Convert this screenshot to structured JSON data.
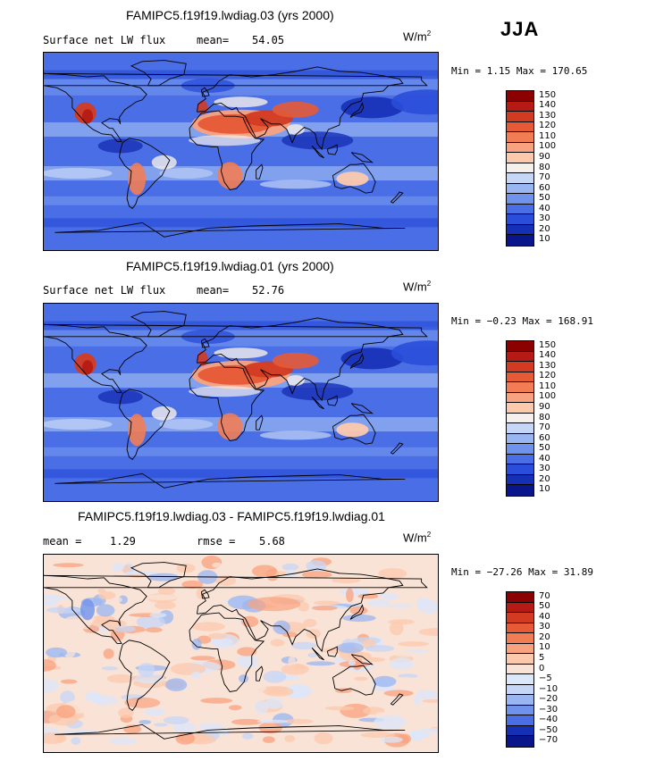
{
  "season": "JJA",
  "panels": [
    {
      "title": "FAMIPC5.f19f19.lwdiag.03 (yrs 2000)",
      "left_label": "Surface net LW flux",
      "stat_label": "mean=",
      "stat_value": "54.05",
      "units": "W/m",
      "units_sup": "2",
      "minmax_label": "Min =",
      "min": "1.15",
      "max_label": "Max =",
      "max": "170.65",
      "levels": [
        "150",
        "140",
        "130",
        "120",
        "110",
        "100",
        "90",
        "80",
        "70",
        "60",
        "50",
        "40",
        "30",
        "20",
        "10"
      ]
    },
    {
      "title": "FAMIPC5.f19f19.lwdiag.01 (yrs 2000)",
      "left_label": "Surface net LW flux",
      "stat_label": "mean=",
      "stat_value": "52.76",
      "units": "W/m",
      "units_sup": "2",
      "minmax_label": "Min =",
      "min": "−0.23",
      "max_label": "Max =",
      "max": "168.91",
      "levels": [
        "150",
        "140",
        "130",
        "120",
        "110",
        "100",
        "90",
        "80",
        "70",
        "60",
        "50",
        "40",
        "30",
        "20",
        "10"
      ]
    },
    {
      "title": "FAMIPC5.f19f19.lwdiag.03 - FAMIPC5.f19f19.lwdiag.01",
      "left_label": "mean =",
      "left_value": "1.29",
      "stat_label": "rmse =",
      "stat_value": "5.68",
      "units": "W/m",
      "units_sup": "2",
      "minmax_label": "Min =",
      "min": "−27.26",
      "max_label": "Max =",
      "max": "31.89",
      "levels": [
        "70",
        "50",
        "40",
        "30",
        "20",
        "10",
        "5",
        "0",
        "−5",
        "−10",
        "−20",
        "−30",
        "−40",
        "−50",
        "−70"
      ]
    }
  ],
  "colors": {
    "abs_scale": [
      "#8b0000",
      "#b51a14",
      "#d23b22",
      "#e65a35",
      "#f27d55",
      "#f9a27f",
      "#fcc9ad",
      "#f5f0ec",
      "#c6d6f7",
      "#99b6f2",
      "#6f92ec",
      "#4a6ee6",
      "#2a4ed9",
      "#1630b5",
      "#09158a"
    ],
    "diff_scale": [
      "#8b0000",
      "#b51a14",
      "#d23b22",
      "#e65a35",
      "#f27d55",
      "#f9a27f",
      "#fcc9ad",
      "#f9e3d6",
      "#dbe7fb",
      "#c6d6f7",
      "#99b6f2",
      "#6f92ec",
      "#4a6ee6",
      "#1630b5",
      "#09158a"
    ]
  }
}
